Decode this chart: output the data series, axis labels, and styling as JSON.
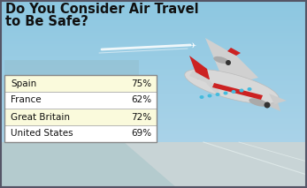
{
  "title_line1": "Do You Consider Air Travel",
  "title_line2": "to Be Safe?",
  "countries": [
    "United States",
    "Great Britain",
    "France",
    "Spain"
  ],
  "percentages": [
    "69%",
    "72%",
    "62%",
    "75%"
  ],
  "row_colors": [
    "#ffffff",
    "#fafadc",
    "#ffffff",
    "#fafadc"
  ],
  "sky_top": "#6ec6e6",
  "sky_mid": "#7ecce8",
  "sky_bot": "#a8dbe8",
  "ground_color": "#b0c8cc",
  "runway_color": "#c0c8cc",
  "city_color": "#90b8c4",
  "title_color": "#000000",
  "border_color": "#aaaaaa",
  "table_border": "#888888",
  "contrail_color": "#ffffff",
  "plane_body": "#e0e0e0",
  "plane_red": "#cc2222",
  "plane_dark": "#444444",
  "plane_window": "#55bbdd",
  "figw": 3.47,
  "figh": 2.13,
  "dpi": 100
}
